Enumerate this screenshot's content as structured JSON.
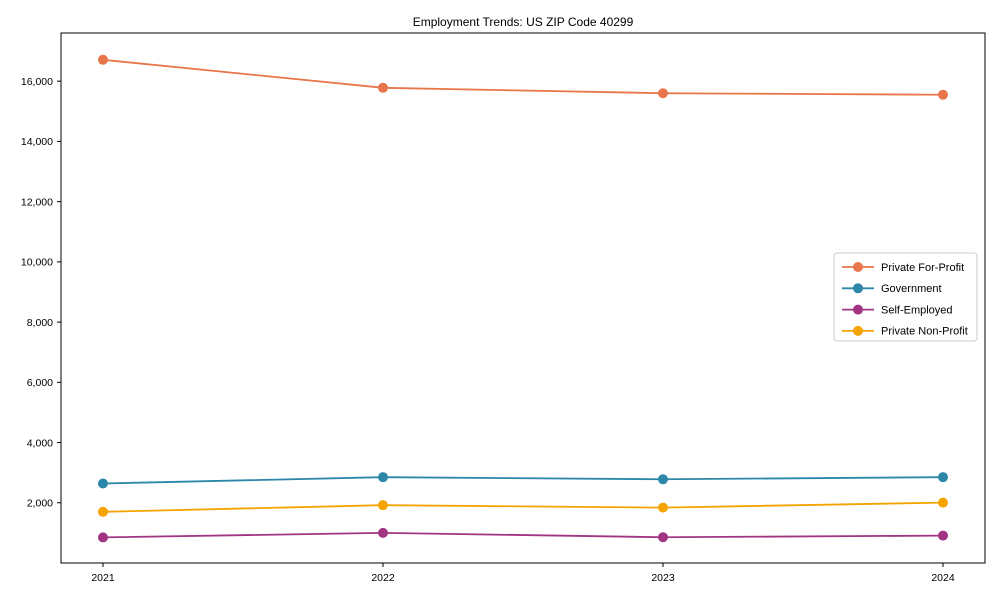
{
  "chart_data": {
    "type": "line",
    "title": "Employment Trends: US ZIP Code 40299",
    "xlabel": "",
    "ylabel": "",
    "x": [
      2021,
      2022,
      2023,
      2024
    ],
    "xtick_labels": [
      "2021",
      "2022",
      "2023",
      "2024"
    ],
    "yticks": [
      2000,
      4000,
      6000,
      8000,
      10000,
      12000,
      14000,
      16000
    ],
    "ytick_labels": [
      "2,000",
      "4,000",
      "6,000",
      "8,000",
      "10,000",
      "12,000",
      "14,000",
      "16,000"
    ],
    "xlim": [
      2020.85,
      2024.15
    ],
    "ylim": [
      0,
      17600
    ],
    "grid": false,
    "legend_position": "center-right-inside",
    "marker": "circle",
    "series": [
      {
        "name": "Private For-Profit",
        "color": "#e8764a",
        "values": [
          16710,
          15780,
          15600,
          15550
        ]
      },
      {
        "name": "Government",
        "color": "#2d87a8",
        "values": [
          2640,
          2850,
          2780,
          2850
        ]
      },
      {
        "name": "Self-Employed",
        "color": "#a23484",
        "values": [
          850,
          1000,
          855,
          910
        ]
      },
      {
        "name": "Private Non-Profit",
        "color": "#f5a300",
        "values": [
          1700,
          1920,
          1840,
          2005
        ]
      }
    ],
    "frame_color": "#000000",
    "legend_border_color": "#cccccc"
  }
}
